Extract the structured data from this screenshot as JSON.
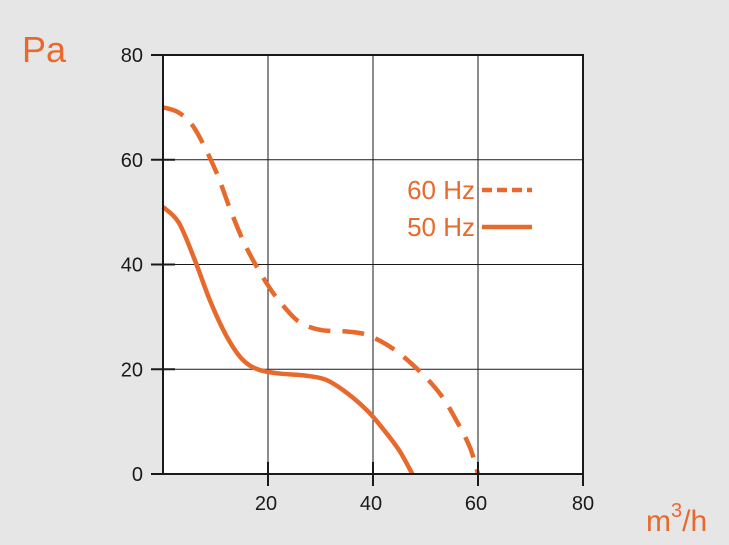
{
  "colors": {
    "background": "#e6e6e6",
    "plot_background": "#ffffff",
    "axis": "#1a1a1a",
    "grid": "#1a1a1a",
    "accent": "#e8692c",
    "tick_text": "#1a1a1a"
  },
  "chart_data": {
    "type": "line",
    "title": "",
    "ylabel": "Pa",
    "xlabel": "m³/h",
    "xlabel_base": "m",
    "xlabel_sup": "3",
    "xlabel_tail": "/h",
    "xlim": [
      0,
      80
    ],
    "ylim": [
      0,
      80
    ],
    "x_ticks": [
      20,
      40,
      60,
      80
    ],
    "x_tick_labels": [
      "20",
      "40",
      "60",
      "80"
    ],
    "y_ticks": [
      0,
      20,
      40,
      60,
      80
    ],
    "y_tick_labels": [
      "0",
      "20",
      "40",
      "60",
      "80"
    ],
    "grid": true,
    "legend_position": "right",
    "series": [
      {
        "name": "60 Hz",
        "style": "dashed",
        "points": [
          [
            0,
            70
          ],
          [
            3,
            69
          ],
          [
            6,
            66
          ],
          [
            10,
            58
          ],
          [
            13,
            50
          ],
          [
            16,
            43
          ],
          [
            20,
            36
          ],
          [
            23,
            32
          ],
          [
            26,
            29
          ],
          [
            30,
            27.5
          ],
          [
            35,
            27.2
          ],
          [
            39,
            26.5
          ],
          [
            44,
            23.8
          ],
          [
            49,
            19.5
          ],
          [
            53,
            15
          ],
          [
            56,
            10
          ],
          [
            58.5,
            5
          ],
          [
            60,
            0
          ]
        ]
      },
      {
        "name": "50 Hz",
        "style": "solid",
        "points": [
          [
            0,
            51
          ],
          [
            3,
            48
          ],
          [
            6,
            41
          ],
          [
            9,
            33
          ],
          [
            12,
            26.5
          ],
          [
            15,
            22
          ],
          [
            18,
            20
          ],
          [
            22,
            19.2
          ],
          [
            27,
            18.8
          ],
          [
            31,
            18
          ],
          [
            35,
            15.5
          ],
          [
            39,
            12
          ],
          [
            42,
            8.5
          ],
          [
            45,
            4.5
          ],
          [
            47.5,
            0
          ]
        ]
      }
    ]
  }
}
